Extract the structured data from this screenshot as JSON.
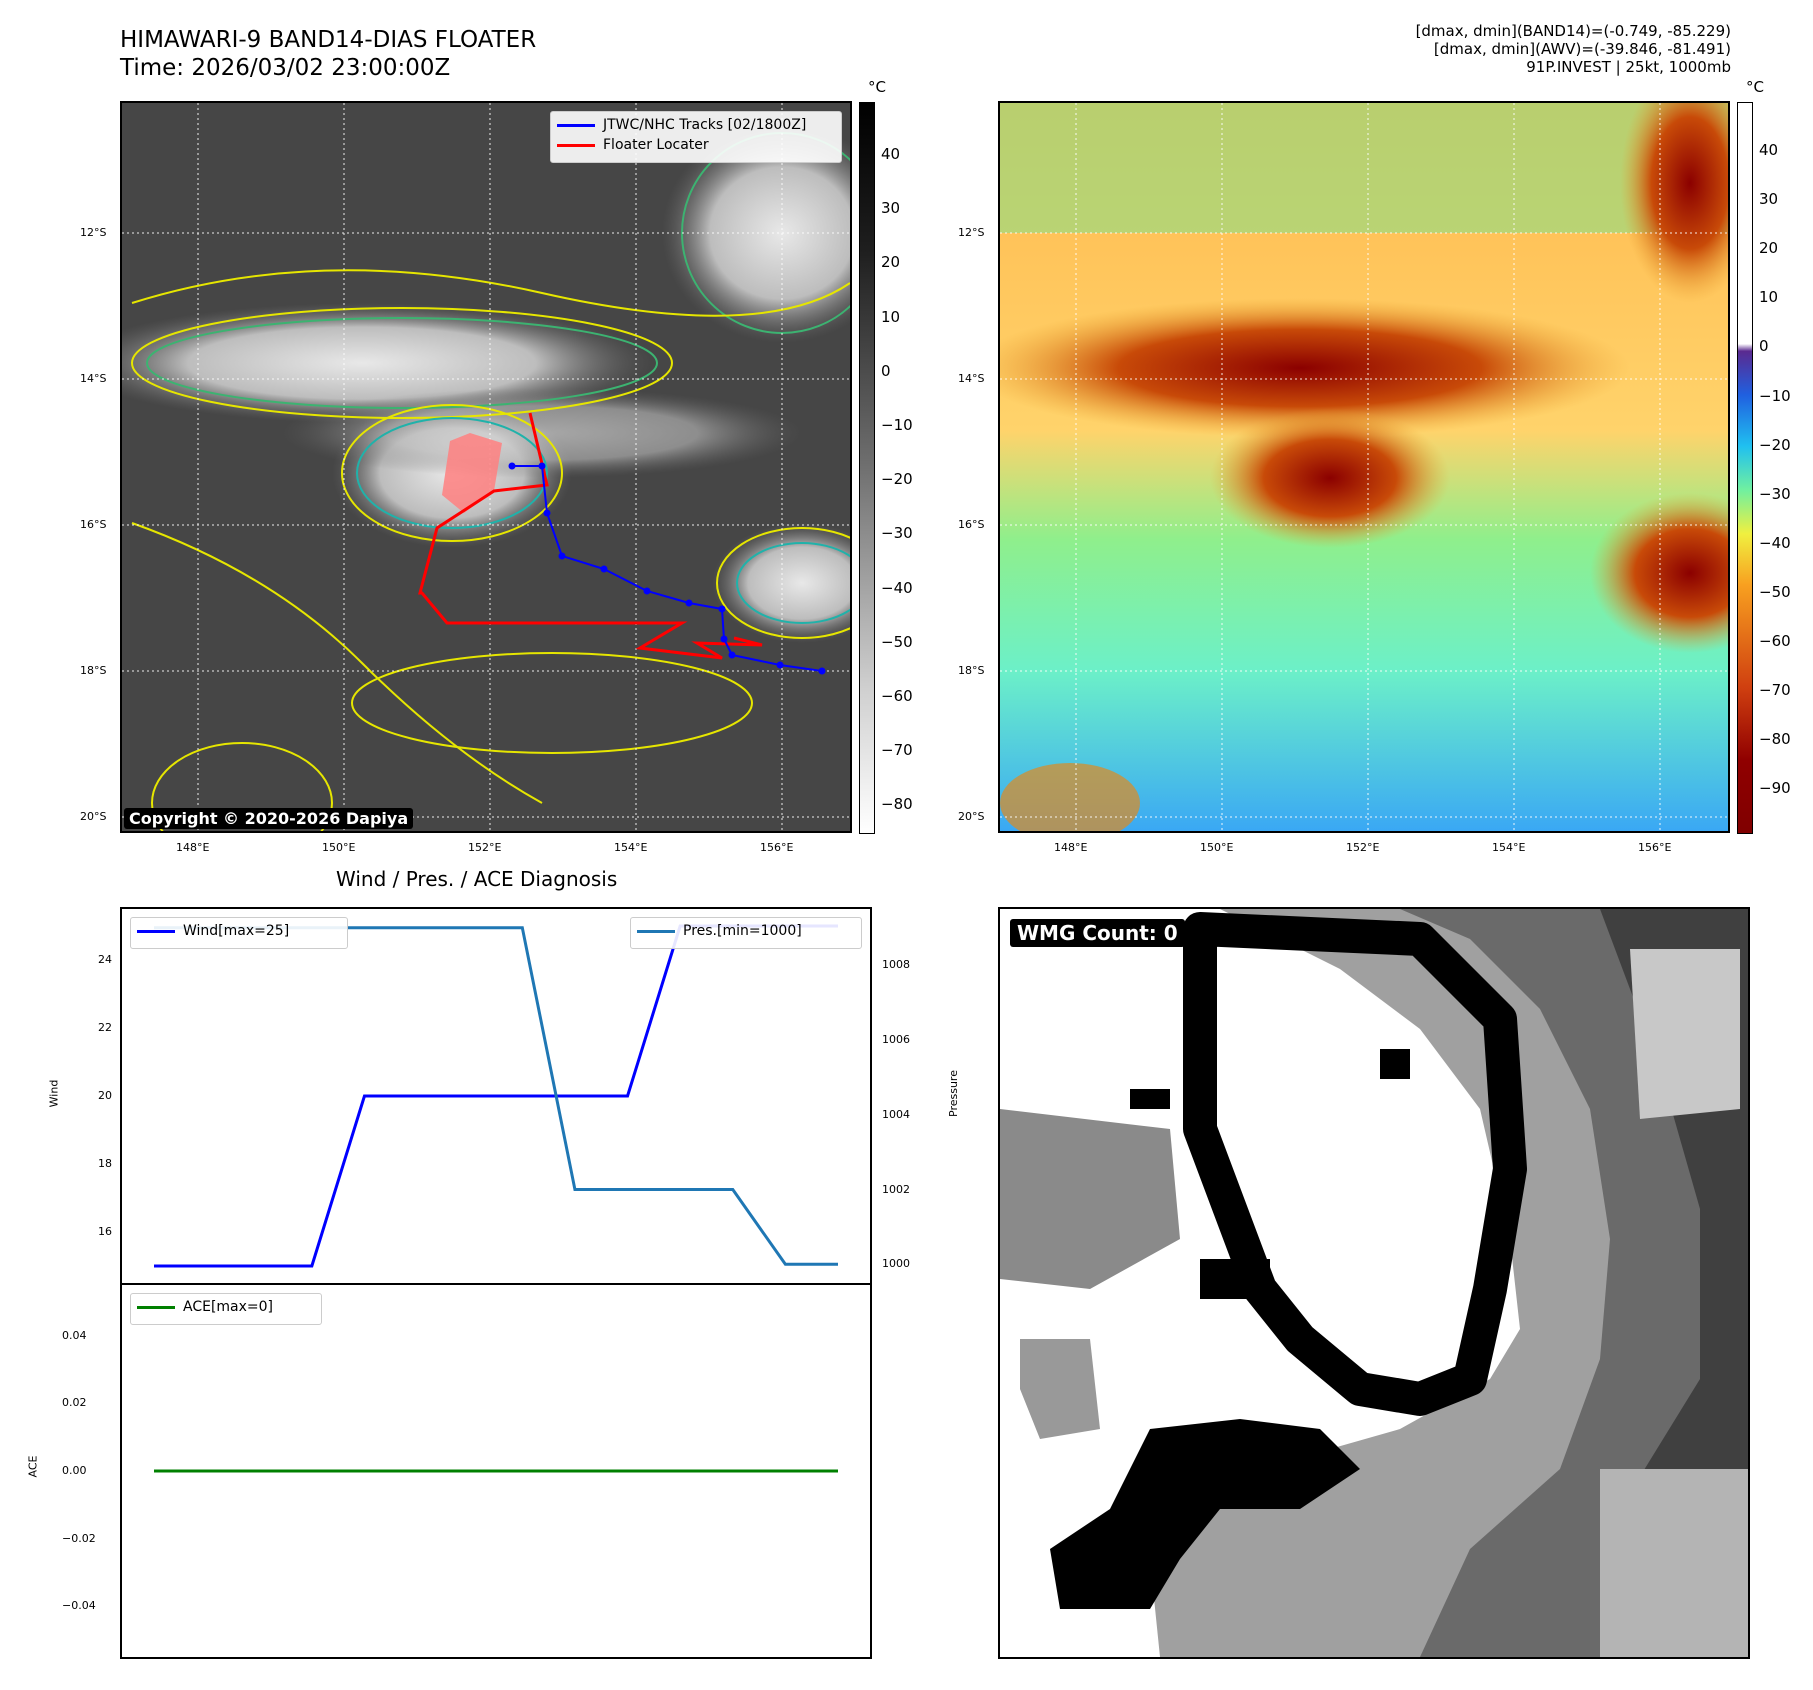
{
  "header": {
    "title_line1": "HIMAWARI-9 BAND14-DIAS FLOATER",
    "title_line2": "Time: 2026/03/02 23:00:00Z",
    "stats_line1": "[dmax, dmin](BAND14)=(-0.749, -85.229)",
    "stats_line2": "[dmax, dmin](AWV)=(-39.846, -81.491)",
    "stats_line3": "91P.INVEST | 25kt, 1000mb"
  },
  "maps": {
    "lat_ticks": [
      "12°S",
      "14°S",
      "16°S",
      "18°S",
      "20°S"
    ],
    "lon_ticks": [
      "148°E",
      "150°E",
      "152°E",
      "154°E",
      "156°E"
    ],
    "unit": "°C",
    "copyright": "Copyright © 2020-2026 Dapiya",
    "legend_track": "JTWC/NHC Tracks [02/1800Z]",
    "legend_floater": "Floater Locater",
    "colors": {
      "track": "#0000ff",
      "floater": "#ff0000"
    }
  },
  "ir_colorbar": {
    "ticks": [
      "40",
      "30",
      "20",
      "10",
      "0",
      "−10",
      "−20",
      "−30",
      "−40",
      "−50",
      "−60",
      "−70",
      "−80"
    ]
  },
  "awv_colorbar": {
    "ticks": [
      "40",
      "30",
      "20",
      "10",
      "0",
      "−10",
      "−20",
      "−30",
      "−40",
      "−50",
      "−60",
      "−70",
      "−80",
      "−90"
    ]
  },
  "diagnosis": {
    "title": "Wind / Pres. / ACE Diagnosis",
    "wind_legend": "Wind[max=25]",
    "pres_legend": "Pres.[min=1000]",
    "ace_legend": "ACE[max=0]",
    "wind_ylabel": "Wind",
    "pres_ylabel": "Pressure",
    "ace_ylabel": "ACE",
    "wind_ticks": [
      "24",
      "22",
      "20",
      "18",
      "16"
    ],
    "pres_ticks": [
      "1008",
      "1006",
      "1004",
      "1002",
      "1000"
    ],
    "ace_ticks": [
      "0.04",
      "0.02",
      "0.00",
      "−0.02",
      "−0.04"
    ]
  },
  "wmg": {
    "label": "WMG Count: 0"
  },
  "chart_data": [
    {
      "type": "line",
      "title": "Wind / Pres. / ACE Diagnosis",
      "x": [
        0,
        1,
        2,
        3,
        4,
        5,
        6,
        7,
        8,
        9,
        10,
        11,
        12,
        13
      ],
      "series": [
        {
          "name": "Wind[max=25]",
          "axis": "Wind",
          "color": "#0000ff",
          "values": [
            15,
            15,
            15,
            15,
            20,
            20,
            20,
            20,
            20,
            20,
            25,
            25,
            25,
            25
          ]
        },
        {
          "name": "Pres.[min=1000]",
          "axis": "Pressure",
          "color": "#1f77b4",
          "values": [
            1009,
            1009,
            1009,
            1009,
            1009,
            1009,
            1009,
            1009,
            1002,
            1002,
            1002,
            1002,
            1000,
            1000
          ]
        }
      ],
      "ylim_wind": [
        14.5,
        25.5
      ],
      "ylim_pres": [
        999.5,
        1009.5
      ]
    },
    {
      "type": "line",
      "x": [
        0,
        1,
        2,
        3,
        4,
        5,
        6,
        7,
        8,
        9,
        10,
        11,
        12,
        13
      ],
      "series": [
        {
          "name": "ACE[max=0]",
          "axis": "ACE",
          "color": "#008000",
          "values": [
            0,
            0,
            0,
            0,
            0,
            0,
            0,
            0,
            0,
            0,
            0,
            0,
            0,
            0
          ]
        }
      ],
      "ylim": [
        -0.055,
        0.055
      ]
    }
  ]
}
